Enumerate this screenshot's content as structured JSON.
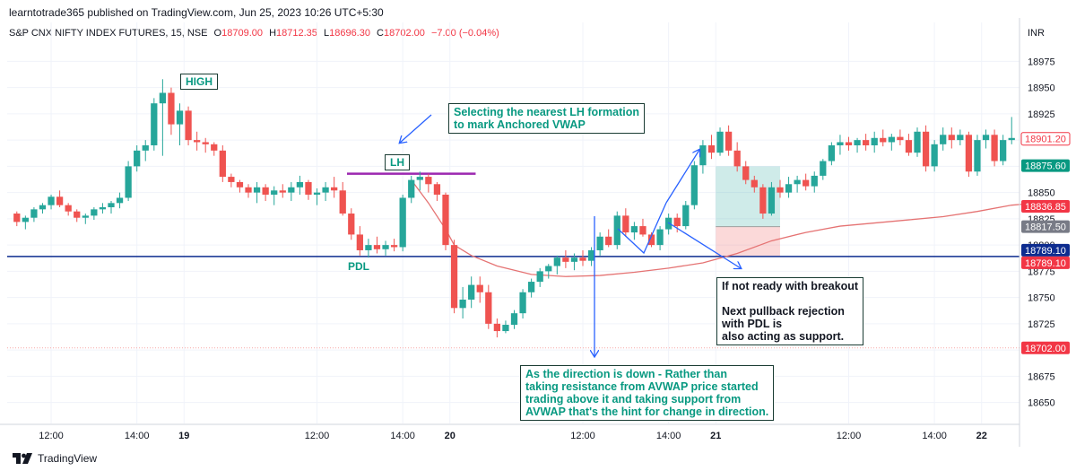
{
  "header": {
    "publish_line": "learntotrade365 published on TradingView.com, Jun 25, 2023 10:26 UTC+5:30",
    "symbol": "S&P CNX NIFTY INDEX FUTURES, 15, NSE",
    "open_label": "O",
    "open": "18709.00",
    "high_label": "H",
    "high": "18712.35",
    "low_label": "L",
    "low": "18696.30",
    "close_label": "C",
    "close": "18702.00",
    "change": "−7.00 (−0.04%)",
    "currency": "INR"
  },
  "footer": {
    "brand": "TradingView"
  },
  "annotations": {
    "high": "HIGH",
    "lh": "LH",
    "pdl": "PDL",
    "anchored_note": "Selecting the nearest LH formation\nto mark Anchored VWAP",
    "breakout_note": "If not ready with breakout\n\nNext pullback rejection\nwith PDL is\nalso acting as support.",
    "direction_note": "As the direction is down - Rather than\ntaking resistance from AVWAP price started\ntrading above it and taking support from\nAVWAP that's the hint for change in direction."
  },
  "colors": {
    "up": "#26a69a",
    "down": "#ef5350",
    "annotation_text": "#089981",
    "vwap_line": "#e57373",
    "pdl_line": "#0d2c8f",
    "lh_line": "#9c27b0",
    "arrow": "#2962ff"
  },
  "chart_data": {
    "type": "candlestick",
    "ylim": [
      18630,
      18995
    ],
    "y_ticks": [
      18650,
      18675,
      18700,
      18725,
      18750,
      18775,
      18800,
      18825,
      18850,
      18875,
      18900,
      18925,
      18950,
      18975
    ],
    "x_ticks": [
      {
        "label": "12:00",
        "index": 4
      },
      {
        "label": "14:00",
        "index": 14
      },
      {
        "label": "19",
        "index": 19.5,
        "bold": true
      },
      {
        "label": "12:00",
        "index": 35
      },
      {
        "label": "14:00",
        "index": 45
      },
      {
        "label": "20",
        "index": 50.5,
        "bold": true
      },
      {
        "label": "12:00",
        "index": 66
      },
      {
        "label": "14:00",
        "index": 76
      },
      {
        "label": "21",
        "index": 81.5,
        "bold": true
      },
      {
        "label": "12:00",
        "index": 97
      },
      {
        "label": "14:00",
        "index": 107
      },
      {
        "label": "22",
        "index": 112.5,
        "bold": true
      }
    ],
    "candles": [
      [
        18830,
        18832,
        18818,
        18822
      ],
      [
        18822,
        18828,
        18815,
        18826
      ],
      [
        18826,
        18836,
        18822,
        18834
      ],
      [
        18834,
        18840,
        18830,
        18838
      ],
      [
        18838,
        18848,
        18834,
        18846
      ],
      [
        18846,
        18852,
        18836,
        18838
      ],
      [
        18838,
        18840,
        18828,
        18832
      ],
      [
        18832,
        18834,
        18822,
        18826
      ],
      [
        18826,
        18830,
        18820,
        18828
      ],
      [
        18828,
        18836,
        18824,
        18834
      ],
      [
        18834,
        18840,
        18830,
        18836
      ],
      [
        18836,
        18842,
        18830,
        18840
      ],
      [
        18840,
        18850,
        18835,
        18845
      ],
      [
        18845,
        18880,
        18842,
        18875
      ],
      [
        18875,
        18895,
        18870,
        18890
      ],
      [
        18890,
        18900,
        18880,
        18895
      ],
      [
        18895,
        18940,
        18890,
        18935
      ],
      [
        18935,
        18958,
        18885,
        18945
      ],
      [
        18945,
        18950,
        18905,
        18915
      ],
      [
        18915,
        18935,
        18895,
        18928
      ],
      [
        18928,
        18932,
        18895,
        18900
      ],
      [
        18900,
        18908,
        18890,
        18898
      ],
      [
        18898,
        18902,
        18888,
        18896
      ],
      [
        18896,
        18898,
        18885,
        18890
      ],
      [
        18890,
        18895,
        18860,
        18865
      ],
      [
        18865,
        18868,
        18855,
        18860
      ],
      [
        18860,
        18862,
        18850,
        18855
      ],
      [
        18855,
        18858,
        18845,
        18850
      ],
      [
        18850,
        18860,
        18840,
        18855
      ],
      [
        18855,
        18858,
        18842,
        18848
      ],
      [
        18848,
        18856,
        18838,
        18852
      ],
      [
        18852,
        18858,
        18845,
        18850
      ],
      [
        18850,
        18860,
        18842,
        18855
      ],
      [
        18855,
        18866,
        18848,
        18860
      ],
      [
        18860,
        18862,
        18843,
        18848
      ],
      [
        18848,
        18854,
        18838,
        18850
      ],
      [
        18850,
        18860,
        18842,
        18855
      ],
      [
        18855,
        18865,
        18845,
        18852
      ],
      [
        18852,
        18860,
        18828,
        18830
      ],
      [
        18830,
        18835,
        18805,
        18810
      ],
      [
        18810,
        18818,
        18790,
        18795
      ],
      [
        18795,
        18806,
        18788,
        18800
      ],
      [
        18800,
        18808,
        18792,
        18796
      ],
      [
        18796,
        18804,
        18790,
        18800
      ],
      [
        18800,
        18806,
        18794,
        18798
      ],
      [
        18798,
        18848,
        18794,
        18845
      ],
      [
        18845,
        18866,
        18840,
        18862
      ],
      [
        18862,
        18870,
        18852,
        18865
      ],
      [
        18865,
        18868,
        18850,
        18858
      ],
      [
        18858,
        18860,
        18842,
        18848
      ],
      [
        18848,
        18850,
        18795,
        18800
      ],
      [
        18800,
        18805,
        18735,
        18740
      ],
      [
        18740,
        18760,
        18730,
        18748
      ],
      [
        18748,
        18770,
        18740,
        18762
      ],
      [
        18762,
        18770,
        18745,
        18755
      ],
      [
        18755,
        18762,
        18720,
        18725
      ],
      [
        18725,
        18730,
        18712,
        18718
      ],
      [
        18718,
        18728,
        18716,
        18724
      ],
      [
        18724,
        18738,
        18720,
        18735
      ],
      [
        18735,
        18758,
        18730,
        18755
      ],
      [
        18755,
        18768,
        18750,
        18765
      ],
      [
        18765,
        18778,
        18760,
        18775
      ],
      [
        18775,
        18782,
        18768,
        18780
      ],
      [
        18780,
        18790,
        18772,
        18788
      ],
      [
        18788,
        18795,
        18778,
        18784
      ],
      [
        18784,
        18792,
        18776,
        18788
      ],
      [
        18788,
        18795,
        18780,
        18785
      ],
      [
        18785,
        18798,
        18780,
        18795
      ],
      [
        18795,
        18812,
        18790,
        18808
      ],
      [
        18808,
        18815,
        18798,
        18800
      ],
      [
        18800,
        18832,
        18796,
        18828
      ],
      [
        18828,
        18835,
        18808,
        18812
      ],
      [
        18812,
        18822,
        18805,
        18818
      ],
      [
        18818,
        18825,
        18808,
        18810
      ],
      [
        18810,
        18812,
        18798,
        18800
      ],
      [
        18800,
        18818,
        18795,
        18815
      ],
      [
        18815,
        18830,
        18810,
        18826
      ],
      [
        18826,
        18830,
        18812,
        18818
      ],
      [
        18818,
        18842,
        18815,
        18838
      ],
      [
        18838,
        18880,
        18834,
        18876
      ],
      [
        18876,
        18900,
        18868,
        18895
      ],
      [
        18895,
        18905,
        18882,
        18888
      ],
      [
        18888,
        18912,
        18885,
        18908
      ],
      [
        18908,
        18914,
        18885,
        18890
      ],
      [
        18890,
        18898,
        18870,
        18875
      ],
      [
        18875,
        18880,
        18858,
        18862
      ],
      [
        18862,
        18866,
        18850,
        18855
      ],
      [
        18855,
        18858,
        18825,
        18830
      ],
      [
        18830,
        18860,
        18828,
        18855
      ],
      [
        18855,
        18862,
        18845,
        18850
      ],
      [
        18850,
        18865,
        18845,
        18858
      ],
      [
        18858,
        18866,
        18850,
        18862
      ],
      [
        18862,
        18868,
        18852,
        18856
      ],
      [
        18856,
        18870,
        18850,
        18866
      ],
      [
        18866,
        18882,
        18862,
        18880
      ],
      [
        18880,
        18898,
        18876,
        18895
      ],
      [
        18895,
        18905,
        18886,
        18898
      ],
      [
        18898,
        18903,
        18890,
        18895
      ],
      [
        18895,
        18902,
        18888,
        18900
      ],
      [
        18900,
        18906,
        18890,
        18895
      ],
      [
        18895,
        18908,
        18888,
        18902
      ],
      [
        18902,
        18910,
        18894,
        18898
      ],
      [
        18898,
        18906,
        18890,
        18903
      ],
      [
        18903,
        18910,
        18895,
        18900
      ],
      [
        18900,
        18906,
        18885,
        18888
      ],
      [
        18888,
        18912,
        18884,
        18908
      ],
      [
        18908,
        18914,
        18870,
        18875
      ],
      [
        18875,
        18900,
        18870,
        18896
      ],
      [
        18896,
        18912,
        18890,
        18905
      ],
      [
        18905,
        18912,
        18892,
        18900
      ],
      [
        18900,
        18910,
        18895,
        18905
      ],
      [
        18905,
        18908,
        18865,
        18870
      ],
      [
        18870,
        18905,
        18866,
        18900
      ],
      [
        18900,
        18910,
        18892,
        18905
      ],
      [
        18905,
        18910,
        18875,
        18880
      ],
      [
        18880,
        18905,
        18876,
        18900
      ],
      [
        18900,
        18922,
        18896,
        18902
      ]
    ],
    "vwap": [
      [
        46,
        18862
      ],
      [
        48,
        18840
      ],
      [
        50,
        18815
      ],
      [
        51,
        18800
      ],
      [
        53,
        18790
      ],
      [
        56,
        18780
      ],
      [
        60,
        18772
      ],
      [
        64,
        18770
      ],
      [
        68,
        18771
      ],
      [
        72,
        18774
      ],
      [
        76,
        18778
      ],
      [
        80,
        18783
      ],
      [
        84,
        18792
      ],
      [
        88,
        18804
      ],
      [
        92,
        18812
      ],
      [
        96,
        18818
      ],
      [
        100,
        18821
      ],
      [
        104,
        18824
      ],
      [
        108,
        18827
      ],
      [
        112,
        18832
      ],
      [
        116,
        18838
      ],
      [
        119,
        18840
      ]
    ],
    "lh_level": {
      "start": 38.5,
      "end": 53.5,
      "value": 18868
    },
    "pdl_level": {
      "value": 18789.1
    },
    "price_labels": [
      {
        "value": 18901.2,
        "text": "18901.20",
        "kind": "outline-red"
      },
      {
        "value": 18875.6,
        "text": "18875.60",
        "kind": "green"
      },
      {
        "value": 18836.85,
        "text": "18836.85",
        "kind": "red"
      },
      {
        "value": 18817.5,
        "text": "18817.50",
        "kind": "gray"
      },
      {
        "value": 18789.1,
        "text": "18789.10",
        "kind": "navy"
      },
      {
        "value": 18789.1,
        "text": "18789.10",
        "kind": "red2"
      },
      {
        "value": 18702.0,
        "text": "18702.00",
        "kind": "red"
      }
    ],
    "position": {
      "start": 81.5,
      "end": 89,
      "target": 18875,
      "entry": 18817.5,
      "stop": 18789
    }
  }
}
